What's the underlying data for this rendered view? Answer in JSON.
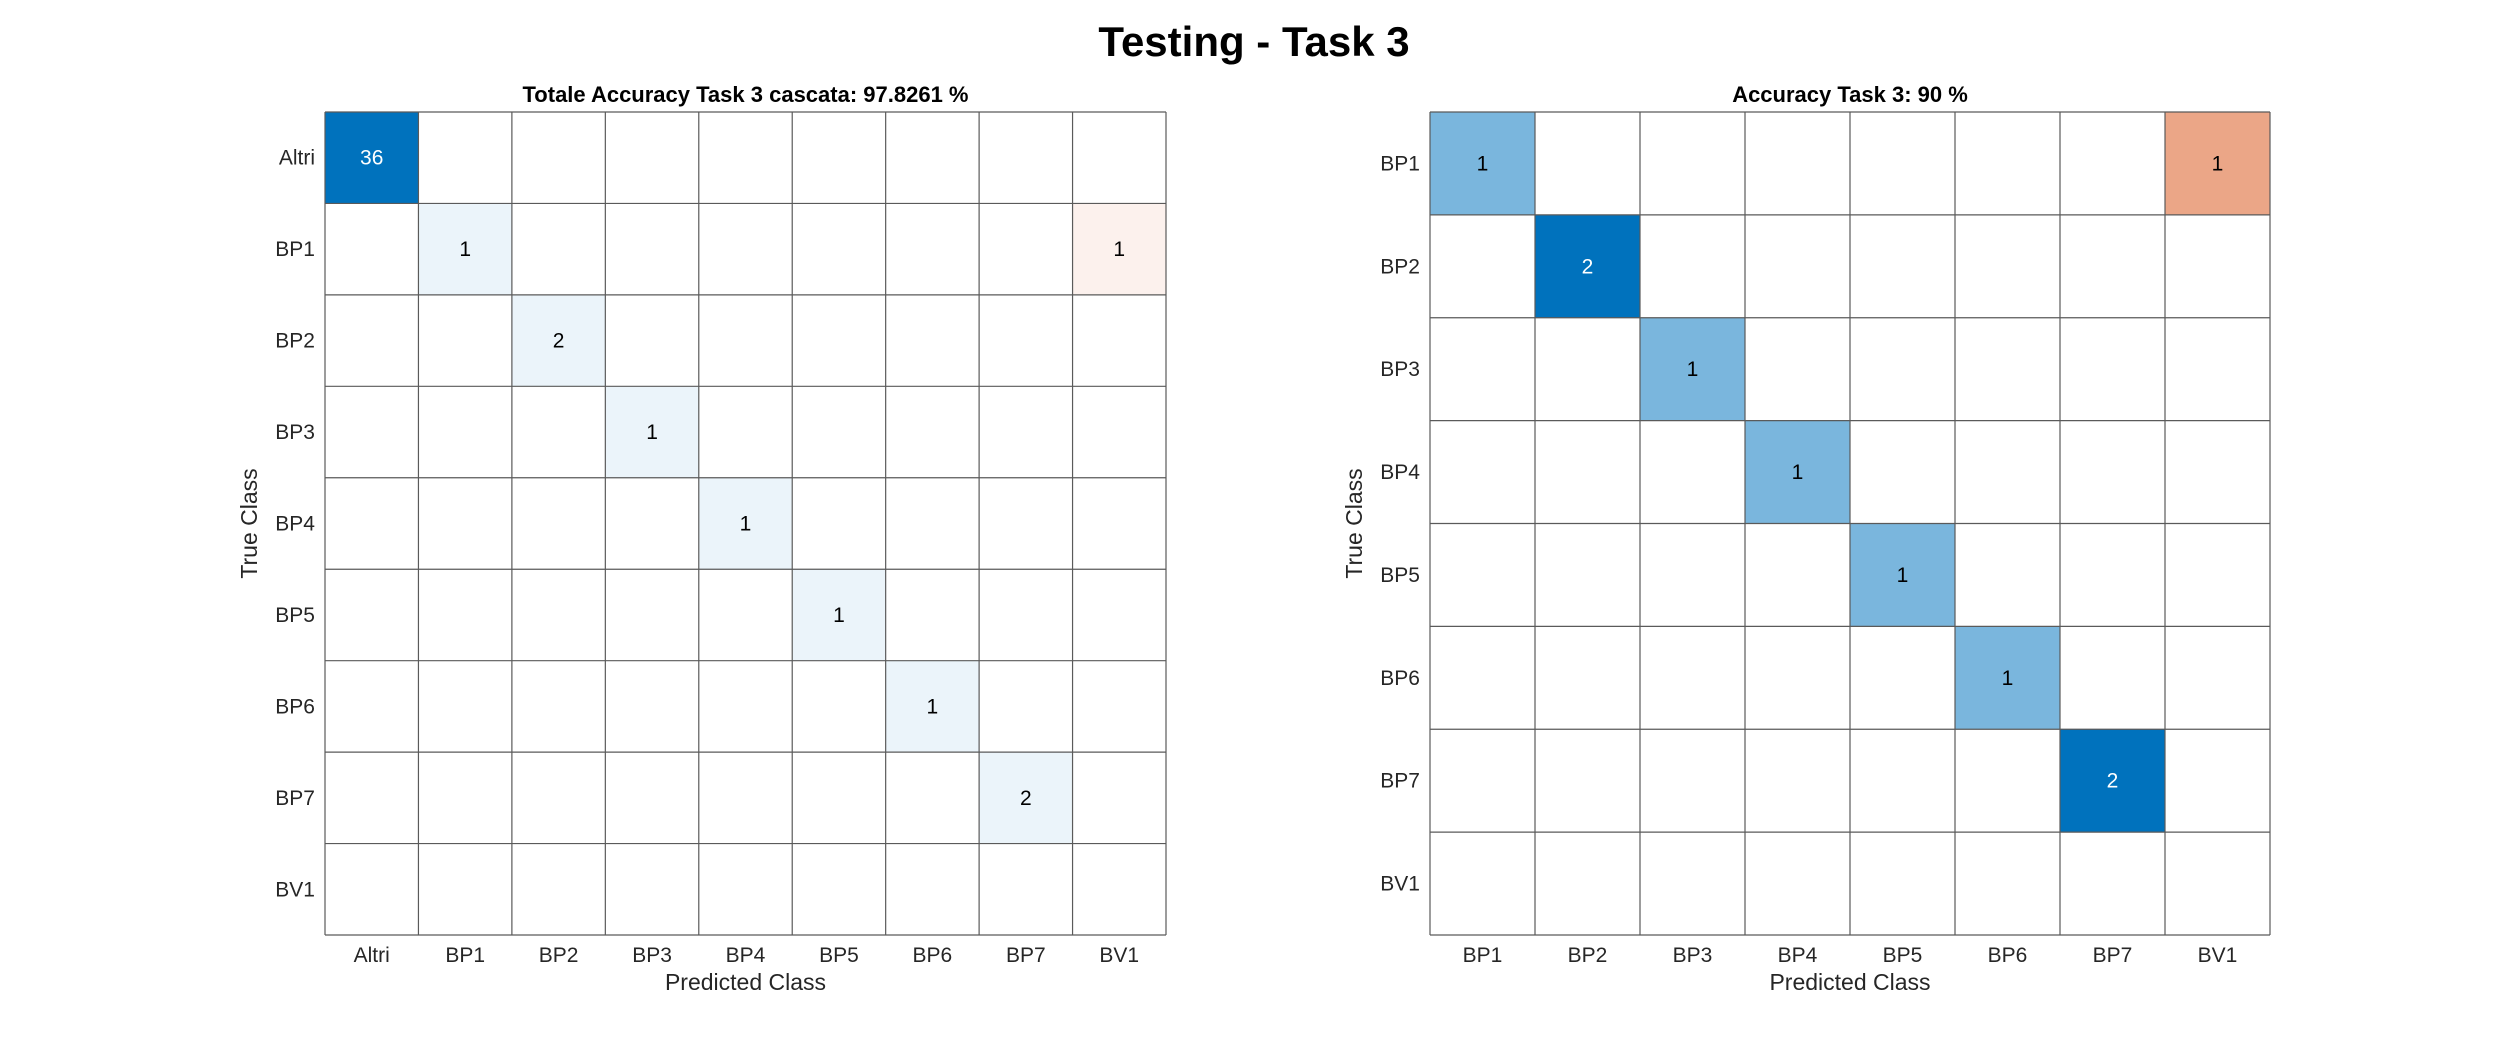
{
  "figure": {
    "title": "Testing - Task 3"
  },
  "colors": {
    "diag_max": "#0072bd",
    "offdiag_max": "#d95319",
    "grid": "#5a5a5a",
    "text_dark": "#000000",
    "text_light": "#ffffff",
    "tick_text": "#262626"
  },
  "chart_data": [
    {
      "type": "heatmap",
      "title": "Totale Accuracy Task 3 cascata: 97.8261 %",
      "xlabel": "Predicted Class",
      "ylabel": "True Class",
      "row_labels": [
        "Altri",
        "BP1",
        "BP2",
        "BP3",
        "BP4",
        "BP5",
        "BP6",
        "BP7",
        "BV1"
      ],
      "col_labels": [
        "Altri",
        "BP1",
        "BP2",
        "BP3",
        "BP4",
        "BP5",
        "BP6",
        "BP7",
        "BV1"
      ],
      "cells": [
        {
          "row": 0,
          "col": 0,
          "value": 36
        },
        {
          "row": 1,
          "col": 1,
          "value": 1
        },
        {
          "row": 1,
          "col": 8,
          "value": 1
        },
        {
          "row": 2,
          "col": 2,
          "value": 2
        },
        {
          "row": 3,
          "col": 3,
          "value": 1
        },
        {
          "row": 4,
          "col": 4,
          "value": 1
        },
        {
          "row": 5,
          "col": 5,
          "value": 1
        },
        {
          "row": 6,
          "col": 6,
          "value": 1
        },
        {
          "row": 7,
          "col": 7,
          "value": 2
        }
      ]
    },
    {
      "type": "heatmap",
      "title": "Accuracy Task 3: 90 %",
      "xlabel": "Predicted Class",
      "ylabel": "True Class",
      "row_labels": [
        "BP1",
        "BP2",
        "BP3",
        "BP4",
        "BP5",
        "BP6",
        "BP7",
        "BV1"
      ],
      "col_labels": [
        "BP1",
        "BP2",
        "BP3",
        "BP4",
        "BP5",
        "BP6",
        "BP7",
        "BV1"
      ],
      "cells": [
        {
          "row": 0,
          "col": 0,
          "value": 1
        },
        {
          "row": 0,
          "col": 7,
          "value": 1
        },
        {
          "row": 1,
          "col": 1,
          "value": 2
        },
        {
          "row": 2,
          "col": 2,
          "value": 1
        },
        {
          "row": 3,
          "col": 3,
          "value": 1
        },
        {
          "row": 4,
          "col": 4,
          "value": 1
        },
        {
          "row": 5,
          "col": 5,
          "value": 1
        },
        {
          "row": 6,
          "col": 6,
          "value": 2
        }
      ]
    }
  ]
}
